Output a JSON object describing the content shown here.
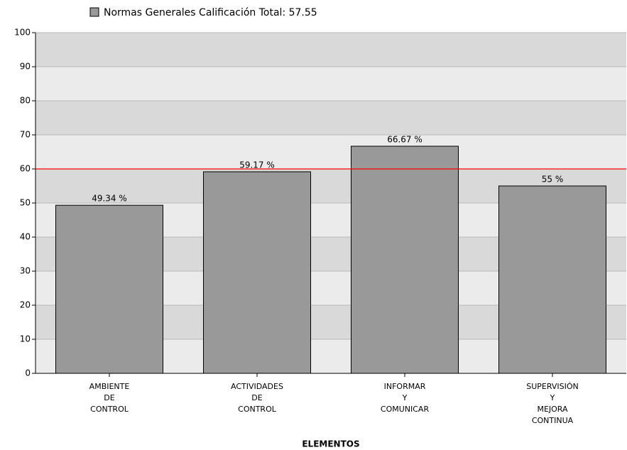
{
  "chart_data": {
    "type": "bar",
    "x_label": "ELEMENTOS",
    "categories": [
      [
        "AMBIENTE",
        "DE",
        "CONTROL"
      ],
      [
        "ACTIVIDADES",
        "DE",
        "CONTROL"
      ],
      [
        "INFORMAR",
        "Y",
        "COMUNICAR"
      ],
      [
        "SUPERVISIÓN",
        "Y",
        "MEJORA",
        "CONTINUA"
      ]
    ],
    "series": [
      {
        "name": "Normas Generales Calificación Total: 57.55",
        "color": "#999999",
        "values": [
          49.34,
          59.17,
          66.67,
          55
        ],
        "value_labels": [
          "49.34 %",
          "59.17 %",
          "66.67 %",
          "55 %"
        ],
        "value_label_colors": [
          "#ff0000",
          "#ff0000",
          "#000000",
          "#ff0000"
        ]
      }
    ],
    "reference_line": {
      "value": 60,
      "color": "#ff0000"
    },
    "ylim": [
      0,
      100
    ],
    "yticks": [
      0,
      10,
      20,
      30,
      40,
      50,
      60,
      70,
      80,
      90,
      100
    ],
    "band_colors": [
      "#ebebeb",
      "#d9d9d9"
    ],
    "grid": true
  }
}
